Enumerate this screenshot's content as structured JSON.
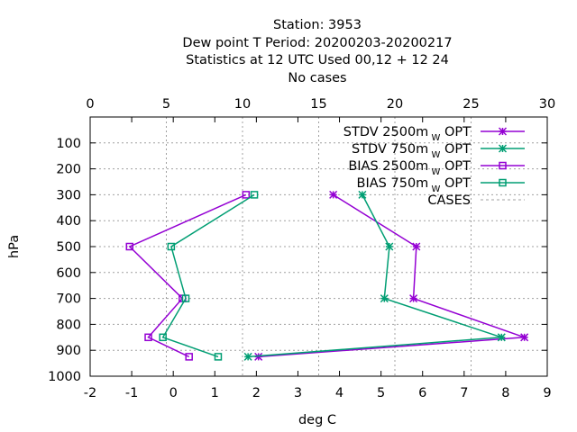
{
  "chart_data": {
    "type": "line",
    "title_lines": [
      "Station:      3953",
      "Dew point T  Period: 20200203-20200217",
      "Statistics at 12 UTC  Used  00,12  + 12 24",
      "No cases"
    ],
    "xlabel": "deg C",
    "ylabel": "hPa",
    "xlim": [
      -2,
      9
    ],
    "x_ticks": [
      -2,
      -1,
      0,
      1,
      2,
      3,
      4,
      5,
      6,
      7,
      8,
      9
    ],
    "ylim": [
      1000,
      0
    ],
    "y_ticks": [
      100,
      200,
      300,
      400,
      500,
      600,
      700,
      800,
      900,
      1000
    ],
    "x2lim": [
      0,
      30
    ],
    "x2_ticks": [
      0,
      5,
      10,
      15,
      20,
      25,
      30
    ],
    "grid": true,
    "legend_position": "top-right",
    "series": [
      {
        "name": "STDV 2500m",
        "name_sub": "W",
        "name_suffix": "OPT",
        "color": "#9400d3",
        "marker": "star",
        "points": [
          [
            3.85,
            300
          ],
          [
            5.85,
            500
          ],
          [
            5.78,
            700
          ],
          [
            8.45,
            850
          ],
          [
            2.05,
            925
          ]
        ]
      },
      {
        "name": "STDV 750m",
        "name_sub": "W",
        "name_suffix": "OPT",
        "color": "#009e73",
        "marker": "star",
        "points": [
          [
            4.55,
            300
          ],
          [
            5.2,
            500
          ],
          [
            5.08,
            700
          ],
          [
            7.9,
            850
          ],
          [
            1.8,
            925
          ]
        ]
      },
      {
        "name": "BIAS 2500m",
        "name_sub": "W",
        "name_suffix": "OPT",
        "color": "#9400d3",
        "marker": "square",
        "points": [
          [
            1.75,
            300
          ],
          [
            -1.05,
            500
          ],
          [
            0.22,
            700
          ],
          [
            -0.6,
            850
          ],
          [
            0.38,
            925
          ]
        ]
      },
      {
        "name": "BIAS 750m",
        "name_sub": "W",
        "name_suffix": "OPT",
        "color": "#009e73",
        "marker": "square",
        "points": [
          [
            1.95,
            300
          ],
          [
            -0.05,
            500
          ],
          [
            0.3,
            700
          ],
          [
            -0.25,
            850
          ],
          [
            1.08,
            925
          ]
        ]
      },
      {
        "name": "CASES",
        "name_sub": "",
        "name_suffix": "",
        "color": "#a0a0a0",
        "marker": "none",
        "dashed": true,
        "points": []
      }
    ]
  }
}
